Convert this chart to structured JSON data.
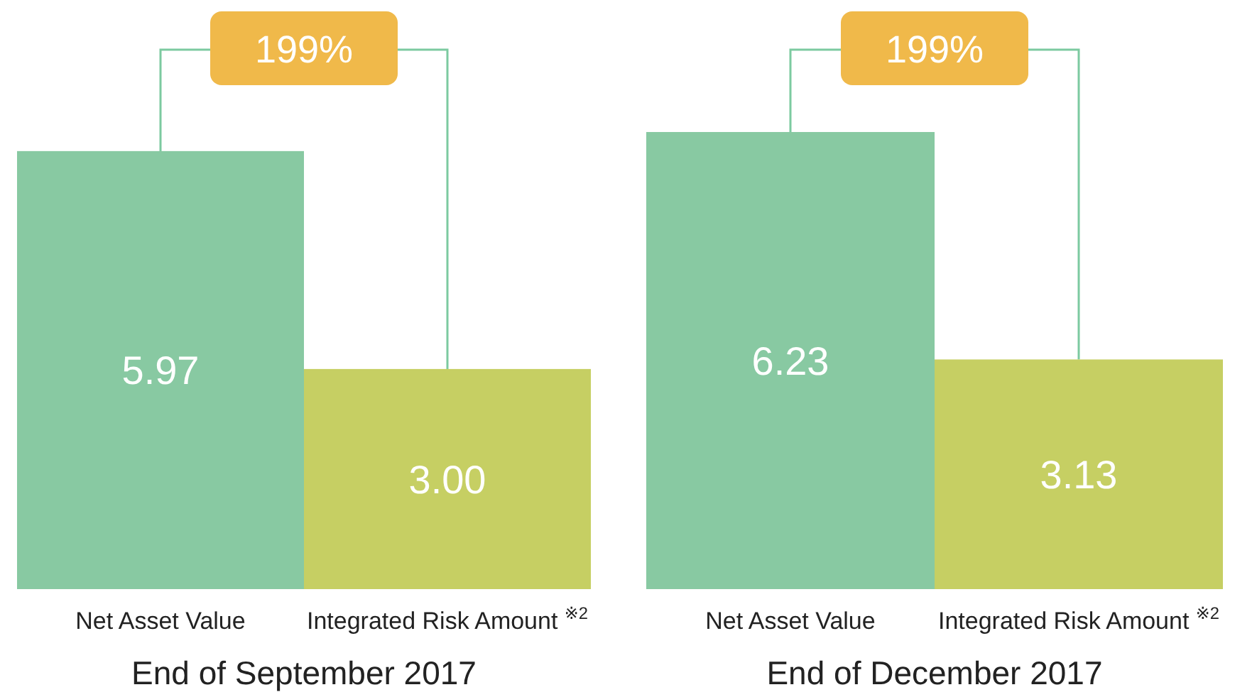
{
  "chart_data": [
    {
      "type": "bar",
      "xlabel": "End of September 2017",
      "categories": [
        "Net Asset Value",
        "Integrated Risk Amount $^{※2}$"
      ],
      "values": [
        5.97,
        3.0
      ],
      "colors": [
        "#88c9a2",
        "#c6cf63"
      ],
      "data_labels": true,
      "value_labels": [
        "5.97",
        "3.00"
      ],
      "annotations": [
        "199%"
      ]
    },
    {
      "type": "bar",
      "xlabel": "End of December 2017",
      "categories": [
        "Net Asset Value",
        "Integrated Risk Amount $^{※2}$"
      ],
      "values": [
        6.23,
        3.13
      ],
      "colors": [
        "#88c9a2",
        "#c6cf63"
      ],
      "data_labels": true,
      "value_labels": [
        "6.23",
        "3.13"
      ],
      "annotations": [
        "199%"
      ]
    }
  ]
}
